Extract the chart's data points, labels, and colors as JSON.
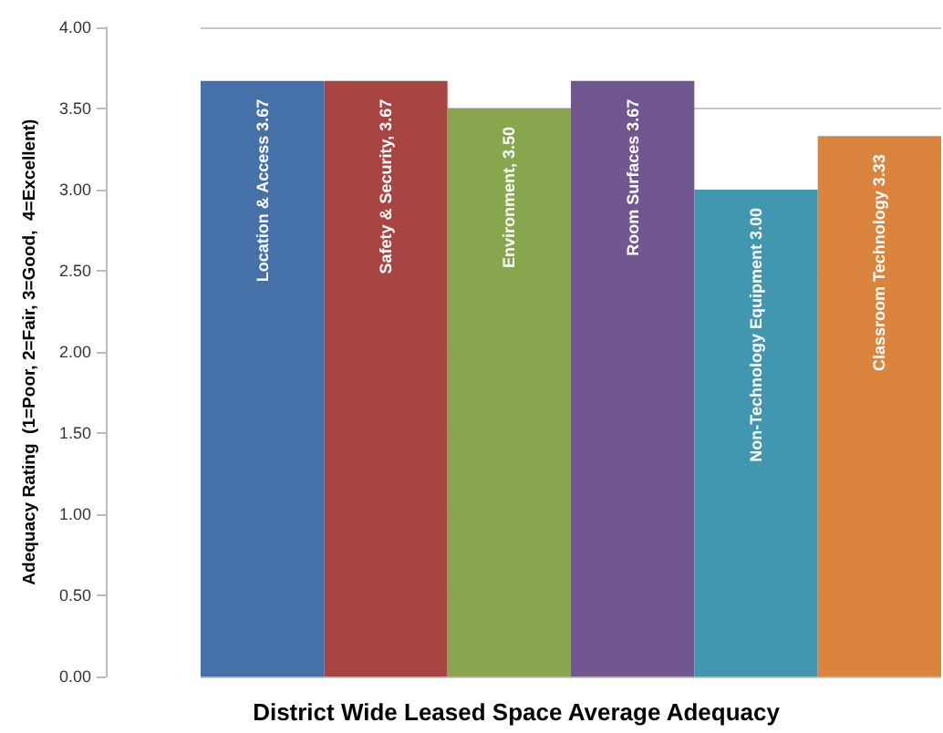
{
  "chart_data": {
    "type": "bar",
    "xlabel": "District Wide Leased Space Average Adequacy",
    "ylabel": "Adequacy Rating  (1=Poor, 2=Fair, 3=Good,  4=Excellent)",
    "categories": [
      null,
      null,
      null,
      null,
      null,
      null
    ],
    "values": [
      3.67,
      3.67,
      3.5,
      3.67,
      3.0,
      3.33
    ],
    "value_labels": [
      "Location & Access 3.67",
      "Safety & Security, 3.67",
      "Environment, 3.50",
      "Room Surfaces 3.67",
      "Non-Technology Equipment 3.00",
      "Classroom Technology 3.33"
    ],
    "colors": [
      "#4571a8",
      "#a84543",
      "#89a54e",
      "#71578f",
      "#4197b0",
      "#db843d"
    ],
    "ylim": [
      0,
      4
    ],
    "yticks": [
      {
        "value": 0,
        "label": "0.00"
      },
      {
        "value": 0.5,
        "label": "0.50"
      },
      {
        "value": 1,
        "label": "1.00"
      },
      {
        "value": 1.5,
        "label": "1.50"
      },
      {
        "value": 2,
        "label": "2.00"
      },
      {
        "value": 2.5,
        "label": "2.50"
      },
      {
        "value": 3,
        "label": "3.00"
      },
      {
        "value": 3.5,
        "label": "3.50"
      },
      {
        "value": 4,
        "label": "4.00"
      }
    ],
    "grid": "y"
  }
}
